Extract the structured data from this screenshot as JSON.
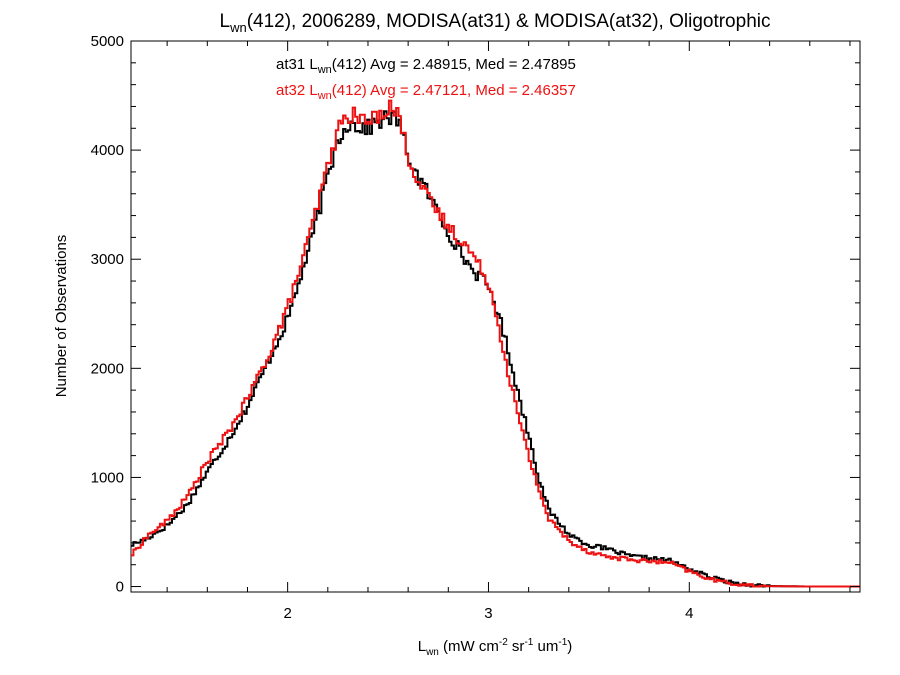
{
  "chart_data": {
    "type": "line",
    "title": {
      "pre": "L",
      "sub": "wn",
      "post": "(412), 2006289, MODISA(at31) & MODISA(at32), Oligotrophic"
    },
    "xlabel": {
      "pre": "L",
      "sub": "wn",
      "mid1": " (mW cm",
      "sup1": "-2",
      "mid2": " sr",
      "sup2": "-1",
      "mid3": " um",
      "sup3": "-1",
      "post": ")"
    },
    "ylabel": "Number of Observations",
    "xlim": [
      1.22,
      4.85
    ],
    "ylim": [
      -50,
      5000
    ],
    "xticks": [
      2,
      3,
      4
    ],
    "yticks": [
      0,
      1000,
      2000,
      3000,
      4000,
      5000
    ],
    "grid": false,
    "legend_placement": "top-center",
    "series": [
      {
        "label": {
          "pre": "at31 L",
          "sub": "wn",
          "post": "(412) Avg = 2.48915, Med = 2.47895"
        },
        "color": "#000000",
        "points": [
          [
            1.22,
            380
          ],
          [
            1.3,
            440
          ],
          [
            1.4,
            560
          ],
          [
            1.5,
            750
          ],
          [
            1.6,
            1050
          ],
          [
            1.7,
            1330
          ],
          [
            1.8,
            1650
          ],
          [
            1.9,
            2050
          ],
          [
            2.0,
            2450
          ],
          [
            2.1,
            3050
          ],
          [
            2.2,
            3750
          ],
          [
            2.25,
            4100
          ],
          [
            2.3,
            4250
          ],
          [
            2.35,
            4220
          ],
          [
            2.4,
            4200
          ],
          [
            2.45,
            4260
          ],
          [
            2.5,
            4300
          ],
          [
            2.55,
            4280
          ],
          [
            2.6,
            3950
          ],
          [
            2.65,
            3750
          ],
          [
            2.7,
            3600
          ],
          [
            2.8,
            3250
          ],
          [
            2.9,
            2950
          ],
          [
            3.0,
            2750
          ],
          [
            3.05,
            2500
          ],
          [
            3.1,
            2150
          ],
          [
            3.15,
            1750
          ],
          [
            3.2,
            1400
          ],
          [
            3.25,
            1000
          ],
          [
            3.3,
            700
          ],
          [
            3.4,
            480
          ],
          [
            3.5,
            380
          ],
          [
            3.6,
            340
          ],
          [
            3.7,
            280
          ],
          [
            3.8,
            260
          ],
          [
            3.9,
            240
          ],
          [
            4.0,
            160
          ],
          [
            4.1,
            90
          ],
          [
            4.2,
            40
          ],
          [
            4.3,
            15
          ],
          [
            4.4,
            5
          ],
          [
            4.6,
            0
          ],
          [
            4.85,
            0
          ]
        ]
      },
      {
        "label": {
          "pre": "at32 L",
          "sub": "wn",
          "post": "(412) Avg = 2.47121, Med = 2.46357"
        },
        "color": "#ee1111",
        "points": [
          [
            1.22,
            280
          ],
          [
            1.3,
            460
          ],
          [
            1.4,
            600
          ],
          [
            1.5,
            820
          ],
          [
            1.6,
            1150
          ],
          [
            1.7,
            1400
          ],
          [
            1.8,
            1720
          ],
          [
            1.9,
            2100
          ],
          [
            2.0,
            2550
          ],
          [
            2.1,
            3150
          ],
          [
            2.2,
            3850
          ],
          [
            2.25,
            4180
          ],
          [
            2.3,
            4330
          ],
          [
            2.35,
            4300
          ],
          [
            2.4,
            4250
          ],
          [
            2.45,
            4320
          ],
          [
            2.5,
            4400
          ],
          [
            2.55,
            4350
          ],
          [
            2.6,
            3950
          ],
          [
            2.65,
            3720
          ],
          [
            2.7,
            3550
          ],
          [
            2.8,
            3300
          ],
          [
            2.9,
            3100
          ],
          [
            3.0,
            2800
          ],
          [
            3.05,
            2400
          ],
          [
            3.1,
            1950
          ],
          [
            3.15,
            1550
          ],
          [
            3.2,
            1200
          ],
          [
            3.25,
            900
          ],
          [
            3.3,
            620
          ],
          [
            3.4,
            420
          ],
          [
            3.5,
            320
          ],
          [
            3.6,
            270
          ],
          [
            3.7,
            250
          ],
          [
            3.8,
            230
          ],
          [
            3.9,
            220
          ],
          [
            4.0,
            140
          ],
          [
            4.1,
            70
          ],
          [
            4.2,
            30
          ],
          [
            4.3,
            10
          ],
          [
            4.4,
            3
          ],
          [
            4.6,
            0
          ],
          [
            4.85,
            0
          ]
        ]
      }
    ]
  }
}
